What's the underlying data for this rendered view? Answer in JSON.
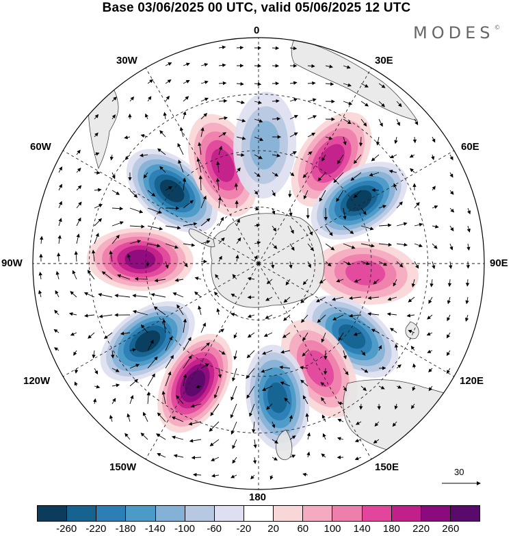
{
  "title": "Base 03/06/2025 00 UTC, valid 05/06/2025 12 UTC",
  "brand": "MODES",
  "brand_mark": "©",
  "longitude_labels": {
    "top": "0",
    "top_left": "30W",
    "top_right": "30E",
    "upper_left": "60W",
    "upper_right": "60E",
    "left": "90W",
    "right": "90E",
    "lower_left": "120W",
    "lower_right": "120E",
    "bottom_left": "150W",
    "bottom_right": "150E",
    "bottom": "180"
  },
  "reference_vector": "30",
  "colorbar": {
    "ticks": [
      "-260",
      "-220",
      "-180",
      "-140",
      "-100",
      "-60",
      "-20",
      "20",
      "60",
      "100",
      "140",
      "180",
      "220",
      "260"
    ],
    "colors": [
      "#0b3c5c",
      "#15638e",
      "#2b7fb5",
      "#4b9ac8",
      "#84b2d7",
      "#b7c8e2",
      "#dedff0",
      "#ffffff",
      "#f9d6d7",
      "#f4aac0",
      "#ee7fad",
      "#e1469c",
      "#c11f8a",
      "#8b0b7e",
      "#5a0a6a"
    ]
  },
  "anomaly_centers": [
    {
      "lon_deg": 35,
      "lat_deg": -45,
      "value": 140
    },
    {
      "lon_deg": 58,
      "lat_deg": -48,
      "value": -220
    },
    {
      "lon_deg": 95,
      "lat_deg": -52,
      "value": 100
    },
    {
      "lon_deg": 128,
      "lat_deg": -48,
      "value": -180
    },
    {
      "lon_deg": 150,
      "lat_deg": -47,
      "value": 100
    },
    {
      "lon_deg": 172,
      "lat_deg": -42,
      "value": -180
    },
    {
      "lon_deg": -152,
      "lat_deg": -42,
      "value": 220
    },
    {
      "lon_deg": -125,
      "lat_deg": -42,
      "value": -220
    },
    {
      "lon_deg": -88,
      "lat_deg": -48,
      "value": 180
    },
    {
      "lon_deg": -50,
      "lat_deg": -50,
      "value": -220
    },
    {
      "lon_deg": -20,
      "lat_deg": -53,
      "value": 140
    },
    {
      "lon_deg": 3,
      "lat_deg": -48,
      "value": -60
    }
  ]
}
